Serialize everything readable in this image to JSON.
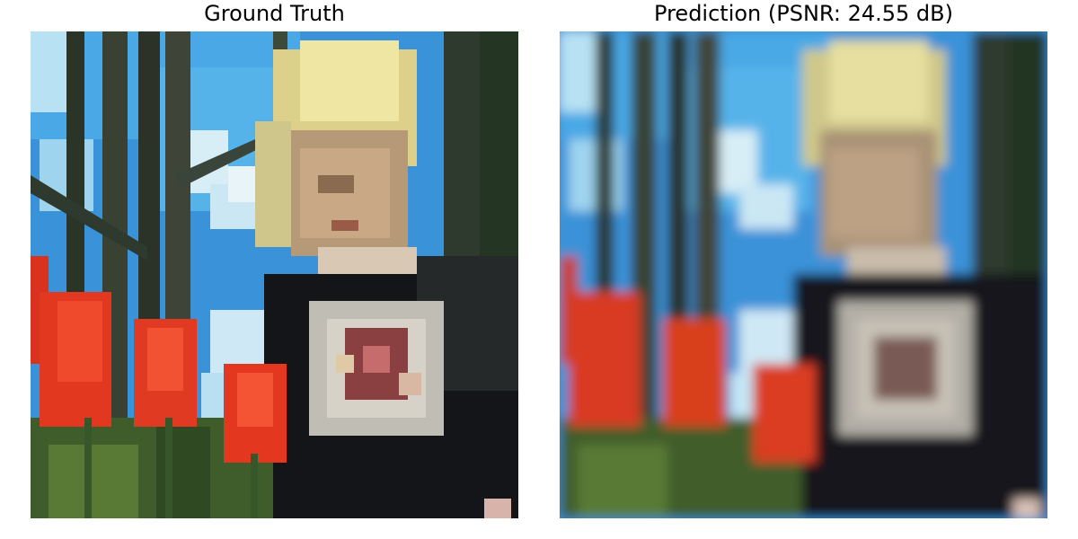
{
  "figure": {
    "panels": [
      {
        "title": "Ground Truth",
        "image_description_icon": "photo-girl-with-red-tulips-pixelated"
      },
      {
        "title": "Prediction (PSNR: 24.55 dB)",
        "image_description_icon": "photo-girl-with-red-tulips-blurred"
      }
    ]
  },
  "colors": {
    "sky": "#3f9be0",
    "cloud": "#d9eef8",
    "tree": "#2f3b2a",
    "tulip": "#e8321e",
    "hair": "#e9dc8a",
    "skin": "#c9a585",
    "dress": "#15161a",
    "grass": "#4a6a2c"
  }
}
